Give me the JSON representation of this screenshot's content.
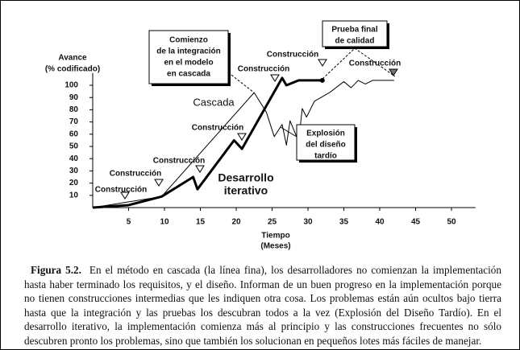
{
  "chart_data": {
    "type": "line",
    "y_label": [
      "Avance",
      "(% codificado)"
    ],
    "x_label": [
      "Tiempo",
      "(Meses)"
    ],
    "xlim": [
      0,
      52
    ],
    "ylim": [
      0,
      110
    ],
    "xticks": [
      5,
      10,
      15,
      20,
      25,
      30,
      35,
      40,
      45,
      50
    ],
    "yticks": [
      10,
      20,
      30,
      40,
      50,
      60,
      70,
      80,
      90,
      100
    ],
    "series": [
      {
        "name": "Cascada",
        "color": "#000000",
        "x": [
          0,
          9.6,
          22.5,
          24.2,
          25.3,
          26.4,
          27,
          27.5,
          28.7,
          29.2,
          29.8,
          30.9,
          33,
          35,
          36,
          37,
          38,
          39,
          42
        ],
        "values": [
          0,
          9,
          94,
          78,
          58,
          68,
          51,
          71,
          54,
          81,
          74,
          87,
          94,
          103,
          98,
          104,
          101,
          104,
          104
        ]
      },
      {
        "name": "Desarrollo iterativo",
        "color": "#000000",
        "x": [
          0,
          5,
          9.6,
          14,
          14.6,
          19.7,
          20.8,
          26.4,
          27,
          28.7,
          32
        ],
        "values": [
          0,
          2,
          9,
          25,
          15,
          55,
          48,
          106,
          100,
          104,
          104
        ]
      }
    ],
    "milestones": [
      "Construcción",
      "Construcción",
      "Construcción",
      "Construcción",
      "Construcción",
      "Construcción",
      "Construcción"
    ],
    "callouts": [
      {
        "lines": [
          "Comienzo",
          "de la integración",
          "en el modelo",
          "en cascada"
        ]
      },
      {
        "lines": [
          "Prueba final",
          "de calidad"
        ]
      },
      {
        "lines": [
          "Explosión",
          "del diseño",
          "tardío"
        ]
      }
    ]
  },
  "caption": {
    "label": "Figura 5.2.",
    "text": "En el método en cascada (la línea fina), los desarrolladores no comienzan la implementación hasta haber terminado los requisitos, y el diseño. Informan de un buen progreso en la implementación porque no tienen construcciones intermedias que les indiquen otra cosa. Los problemas están aún ocultos bajo tierra hasta que la integración y las pruebas los descubran todos a la vez (Explosión del Diseño Tardío). En el desarrollo iterativo, la implementación comienza más al principio y las construcciones frecuentes no sólo descubren pronto los problemas, sino que también los solucionan en pequeños lotes más fáciles de manejar."
  }
}
